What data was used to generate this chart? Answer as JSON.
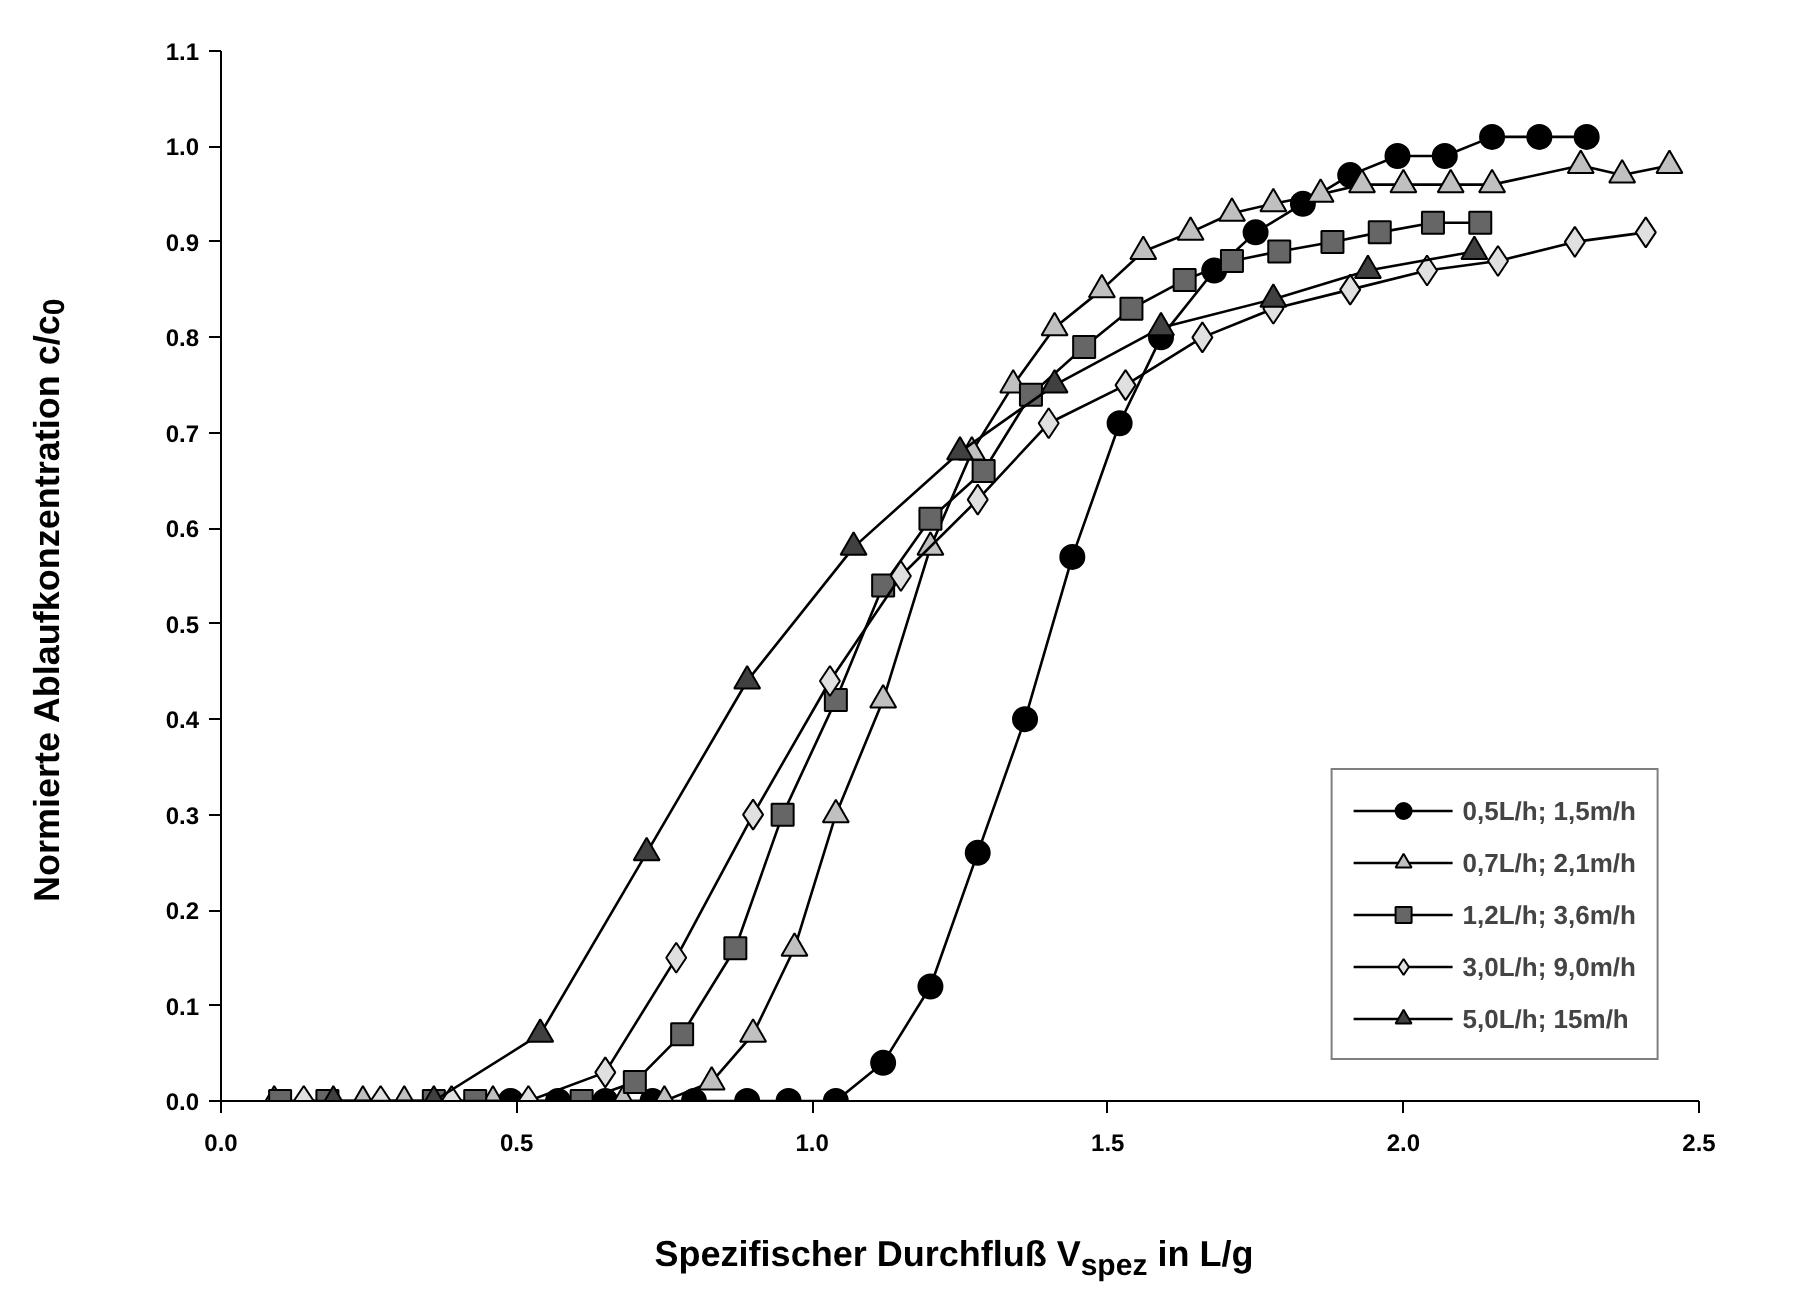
{
  "chart_data": {
    "type": "line",
    "xlabel": "Spezifischer Durchfluß V$_{spez}$ in L/g",
    "ylabel": "Normierte Ablaufkonzentration c/c$_{0}$",
    "xlim": [
      0,
      2.5
    ],
    "ylim": [
      0,
      1.1
    ],
    "xticks": [
      {
        "value": 0,
        "label": "0.0"
      },
      0.5,
      {
        "value": 1,
        "label": "1.0"
      },
      1.5,
      {
        "value": 2,
        "label": "2.0"
      },
      2.5
    ],
    "yticks": [
      {
        "value": 0,
        "label": "0.0"
      },
      0.1,
      0.2,
      0.3,
      0.4,
      0.5,
      0.6,
      0.7,
      0.8,
      0.9,
      {
        "value": 1,
        "label": "1.0"
      },
      1.1
    ],
    "grid": false,
    "legend": "bottom right",
    "line_style": "solid",
    "series": [
      {
        "name": "0,5L/h; 1,5m/h",
        "color": "#000000",
        "marker": "circle",
        "x": [
          0.49,
          0.57,
          0.65,
          0.73,
          0.8,
          0.89,
          0.96,
          1.04,
          1.12,
          1.2,
          1.28,
          1.36,
          1.44,
          1.52,
          1.59,
          1.68,
          1.75,
          1.83,
          1.91,
          1.99,
          2.07,
          2.15,
          2.23,
          2.31
        ],
        "values": [
          0,
          0,
          0,
          0,
          0,
          0,
          0,
          0,
          0.04,
          0.12,
          0.26,
          0.4,
          0.57,
          0.71,
          0.8,
          0.87,
          0.91,
          0.94,
          0.97,
          0.99,
          0.99,
          1.01,
          1.01,
          1.01
        ]
      },
      {
        "name": "0,7L/h; 2,1m/h",
        "color": "#c0c0c0",
        "marker": "triangle",
        "x": [
          0.09,
          0.24,
          0.31,
          0.46,
          0.68,
          0.75,
          0.83,
          0.9,
          0.97,
          1.04,
          1.12,
          1.2,
          1.27,
          1.34,
          1.41,
          1.49,
          1.56,
          1.64,
          1.71,
          1.78,
          1.86,
          1.93,
          2.0,
          2.08,
          2.15,
          2.3,
          2.37,
          2.45
        ],
        "values": [
          0,
          0,
          0,
          0,
          0,
          0,
          0.02,
          0.07,
          0.16,
          0.3,
          0.42,
          0.58,
          0.68,
          0.75,
          0.81,
          0.85,
          0.89,
          0.91,
          0.93,
          0.94,
          0.95,
          0.96,
          0.96,
          0.96,
          0.96,
          0.98,
          0.97,
          0.98
        ]
      },
      {
        "name": "1,2L/h; 3,6m/h",
        "color": "#666666",
        "marker": "square",
        "x": [
          0.1,
          0.18,
          0.36,
          0.43,
          0.61,
          0.7,
          0.78,
          0.87,
          0.95,
          1.04,
          1.12,
          1.2,
          1.29,
          1.37,
          1.46,
          1.54,
          1.63,
          1.71,
          1.79,
          1.88,
          1.96,
          2.05,
          2.13
        ],
        "values": [
          0,
          0,
          0,
          0,
          0,
          0.02,
          0.07,
          0.16,
          0.3,
          0.42,
          0.54,
          0.61,
          0.66,
          0.74,
          0.79,
          0.83,
          0.86,
          0.88,
          0.89,
          0.9,
          0.91,
          0.92,
          0.92
        ]
      },
      {
        "name": "3,0L/h; 9,0m/h",
        "color": "#e0e0e0",
        "marker": "diamond",
        "x": [
          0.14,
          0.27,
          0.39,
          0.52,
          0.65,
          0.77,
          0.9,
          1.03,
          1.15,
          1.28,
          1.4,
          1.53,
          1.66,
          1.78,
          1.91,
          2.04,
          2.16,
          2.29,
          2.41
        ],
        "values": [
          0,
          0,
          0,
          0,
          0.03,
          0.15,
          0.3,
          0.44,
          0.55,
          0.63,
          0.71,
          0.75,
          0.8,
          0.83,
          0.85,
          0.87,
          0.88,
          0.9,
          0.91
        ]
      },
      {
        "name": "5,0L/h; 15m/h",
        "color": "#404040",
        "marker": "triangle",
        "x": [
          0.19,
          0.36,
          0.54,
          0.72,
          0.89,
          1.07,
          1.25,
          1.41,
          1.59,
          1.78,
          1.94,
          2.12
        ],
        "values": [
          0,
          0,
          0.07,
          0.26,
          0.44,
          0.58,
          0.68,
          0.75,
          0.81,
          0.84,
          0.87,
          0.89
        ]
      }
    ]
  }
}
